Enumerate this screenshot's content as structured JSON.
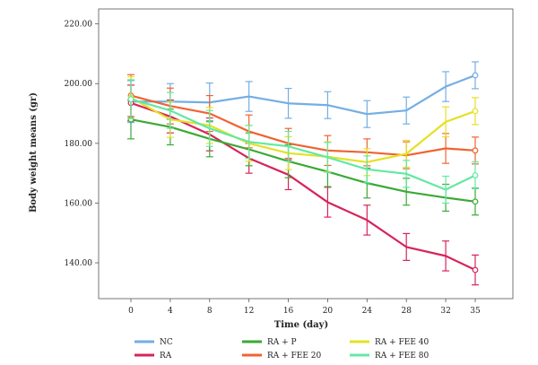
{
  "chart_data": {
    "type": "line",
    "xlabel": "Time (day)",
    "ylabel": "Body weight means (gr)",
    "x": [
      "0",
      "4",
      "8",
      "12",
      "16",
      "20",
      "24",
      "28",
      "32",
      "35"
    ],
    "ylim": [
      128,
      225
    ],
    "yticks": [
      "140.00",
      "160.00",
      "180.00",
      "200.00",
      "220.00"
    ],
    "grid": false,
    "error_bars": true,
    "legend": "bottom",
    "series": [
      {
        "name": "NC",
        "color": "#74aee3",
        "values": [
          194,
          194,
          193.7,
          195.7,
          193.4,
          192.8,
          189.8,
          191,
          199,
          202.8
        ],
        "err": [
          7,
          6,
          6.5,
          5,
          5,
          4.5,
          4.5,
          4.5,
          5,
          4.5
        ]
      },
      {
        "name": "RA",
        "color": "#d7245b",
        "values": [
          193.5,
          189,
          183,
          175,
          169.5,
          160.3,
          154.3,
          145.3,
          142.3,
          137.6
        ],
        "err": [
          6,
          5.5,
          5.5,
          5,
          5,
          5,
          5,
          4.5,
          5,
          5
        ]
      },
      {
        "name": "RA + P",
        "color": "#3aaa35",
        "values": [
          188,
          185.5,
          181.5,
          178,
          174,
          170.5,
          166.7,
          163.8,
          161.8,
          160.5
        ],
        "err": [
          6.5,
          6,
          6,
          5.5,
          5.5,
          5,
          5,
          4.5,
          4.5,
          4.5
        ]
      },
      {
        "name": "RA + FEE 20",
        "color": "#f06330",
        "values": [
          196,
          192.5,
          190,
          184,
          180,
          177.6,
          177,
          176,
          178.3,
          177.6
        ],
        "err": [
          7,
          6,
          6,
          5.5,
          5,
          5,
          4.5,
          4.5,
          5,
          4.5
        ]
      },
      {
        "name": "RA + FEE 40",
        "color": "#e6e024",
        "values": [
          195.3,
          188,
          186,
          180,
          176.7,
          175.5,
          173.7,
          176.5,
          187.2,
          190.8
        ],
        "err": [
          7,
          6,
          6,
          6,
          5.5,
          5,
          4.5,
          4.5,
          5,
          4.5
        ]
      },
      {
        "name": "RA + FEE 80",
        "color": "#63e8a3",
        "values": [
          194.8,
          191,
          185,
          180.5,
          179,
          175.3,
          171.3,
          169.8,
          164.5,
          169.3
        ],
        "err": [
          6.5,
          6,
          6,
          5.5,
          5,
          5,
          4.5,
          4.5,
          4.5,
          4.5
        ]
      }
    ]
  }
}
